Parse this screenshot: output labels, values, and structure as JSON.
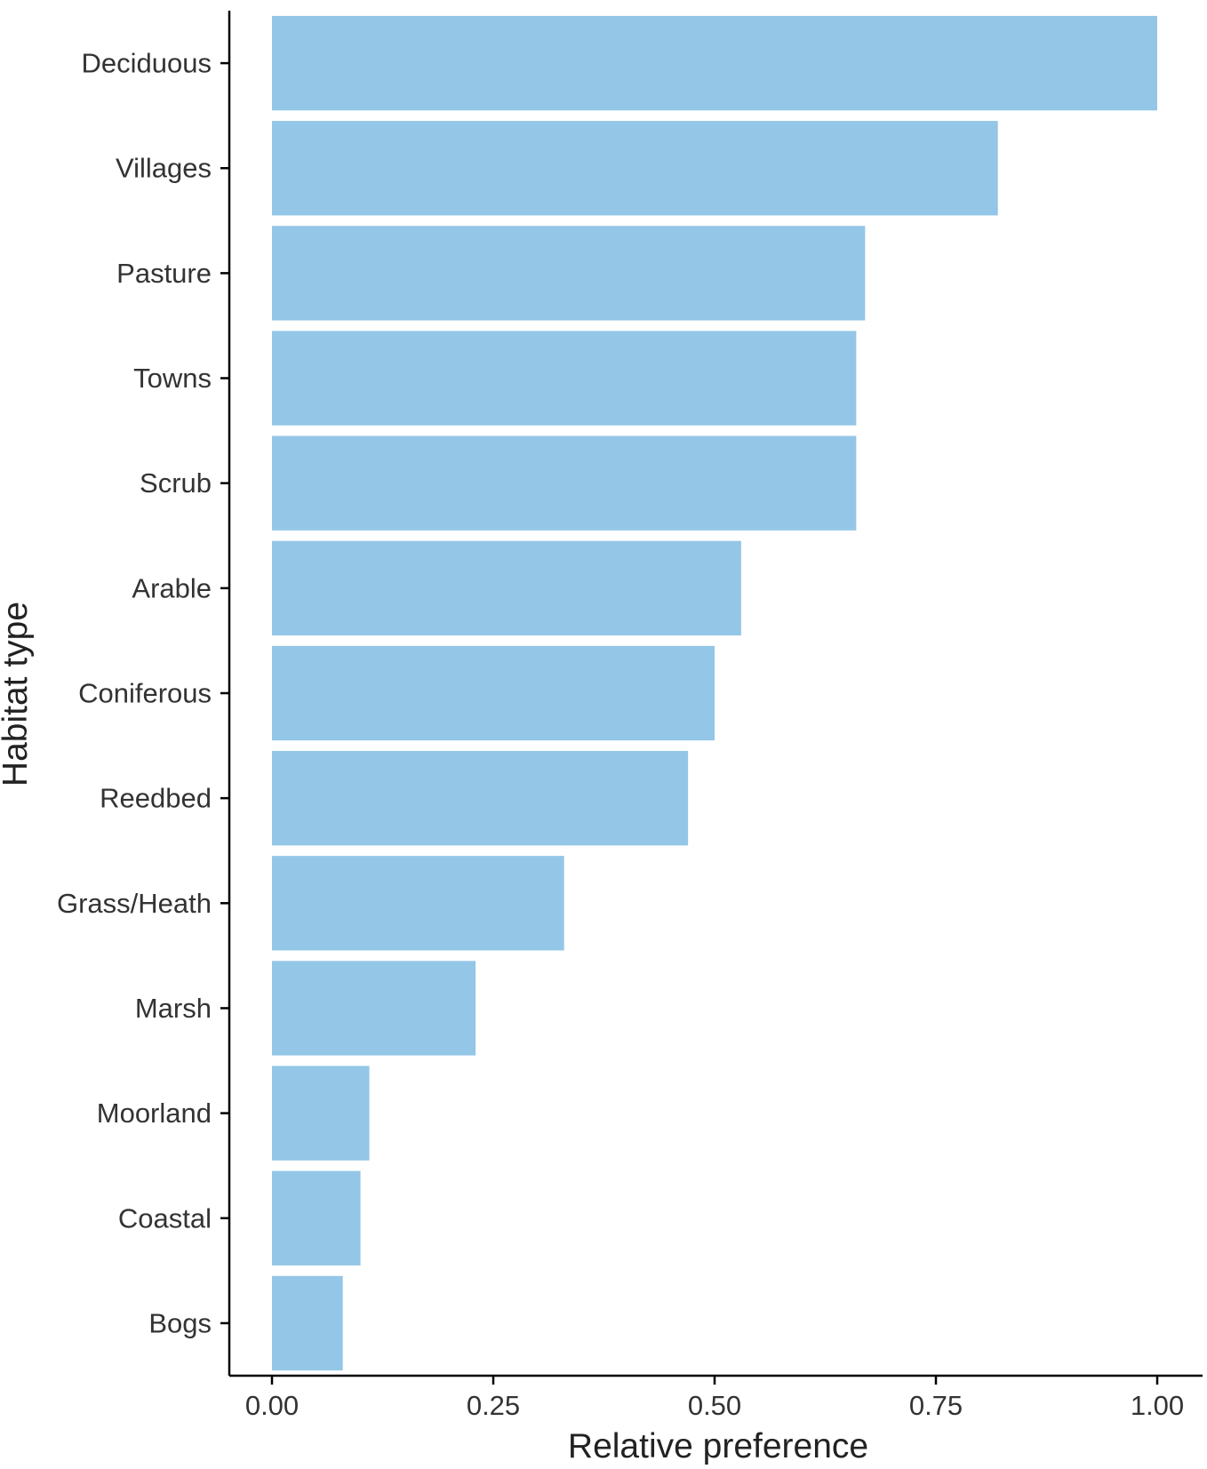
{
  "chart_data": {
    "type": "bar",
    "orientation": "horizontal",
    "title": "",
    "xlabel": "Relative preference",
    "ylabel": "Habitat type",
    "categories": [
      "Deciduous",
      "Villages",
      "Pasture",
      "Towns",
      "Scrub",
      "Arable",
      "Coniferous",
      "Reedbed",
      "Grass/Heath",
      "Marsh",
      "Moorland",
      "Coastal",
      "Bogs"
    ],
    "values": [
      1.0,
      0.82,
      0.67,
      0.66,
      0.66,
      0.53,
      0.5,
      0.47,
      0.33,
      0.23,
      0.11,
      0.1,
      0.08
    ],
    "xlim": [
      -0.05,
      1.05
    ],
    "xticks": [
      0.0,
      0.25,
      0.5,
      0.75,
      1.0
    ],
    "xtick_labels": [
      "0.00",
      "0.25",
      "0.50",
      "0.75",
      "1.00"
    ],
    "bar_color": "#94c6e7",
    "axis_color": "#000000",
    "grid": false,
    "legend": "none"
  }
}
